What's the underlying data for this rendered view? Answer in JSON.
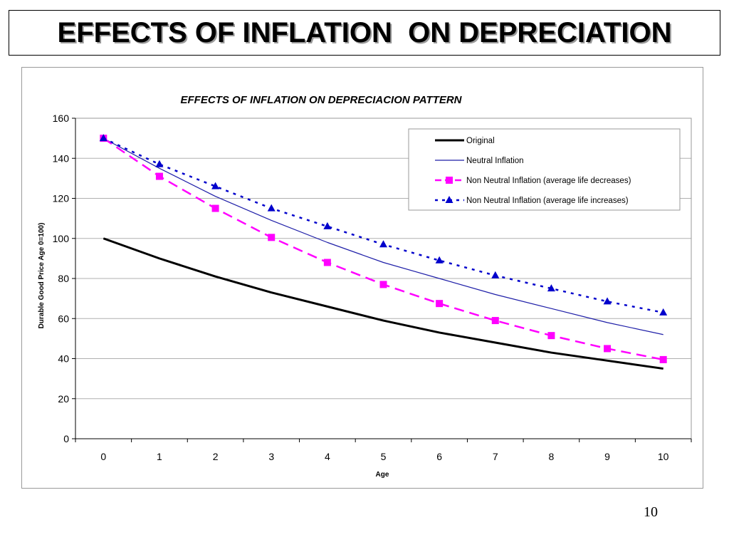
{
  "slide": {
    "title": "EFFECTS OF INFLATION  ON DEPRECIATION",
    "page_number": "10"
  },
  "colors": {
    "original": "#000000",
    "neutral": "#1f1fa8",
    "non_neutral_decreases": "#ff00ff",
    "non_neutral_increases": "#0000cc",
    "grid": "#b0b0b0"
  },
  "chart_data": {
    "type": "line",
    "title": "EFFECTS OF INFLATION ON DEPRECIACION PATTERN",
    "xlabel": "Age",
    "ylabel": "Durable Good Price Age 0=100)",
    "x": [
      0,
      1,
      2,
      3,
      4,
      5,
      6,
      7,
      8,
      9,
      10
    ],
    "ylim": [
      0,
      160
    ],
    "yticks": [
      0,
      20,
      40,
      60,
      80,
      100,
      120,
      140,
      160
    ],
    "grid": true,
    "legend_position": "top-right",
    "series": [
      {
        "name": "Original",
        "values": [
          100,
          90,
          81,
          73,
          66,
          59,
          53,
          48,
          43,
          39,
          35
        ]
      },
      {
        "name": "Neutral Inflation",
        "values": [
          150,
          135,
          121,
          109,
          98,
          88,
          80,
          72,
          65,
          58,
          52
        ]
      },
      {
        "name": "Non Neutral Inflation (average life decreases)",
        "values": [
          150,
          131,
          115,
          100.5,
          88,
          77,
          67.5,
          59,
          51.5,
          45,
          39.5
        ]
      },
      {
        "name": "Non Neutral Inflation (average life increases)",
        "values": [
          150,
          137,
          126,
          115,
          106,
          97,
          89,
          81.5,
          75,
          68.5,
          63
        ]
      }
    ]
  }
}
